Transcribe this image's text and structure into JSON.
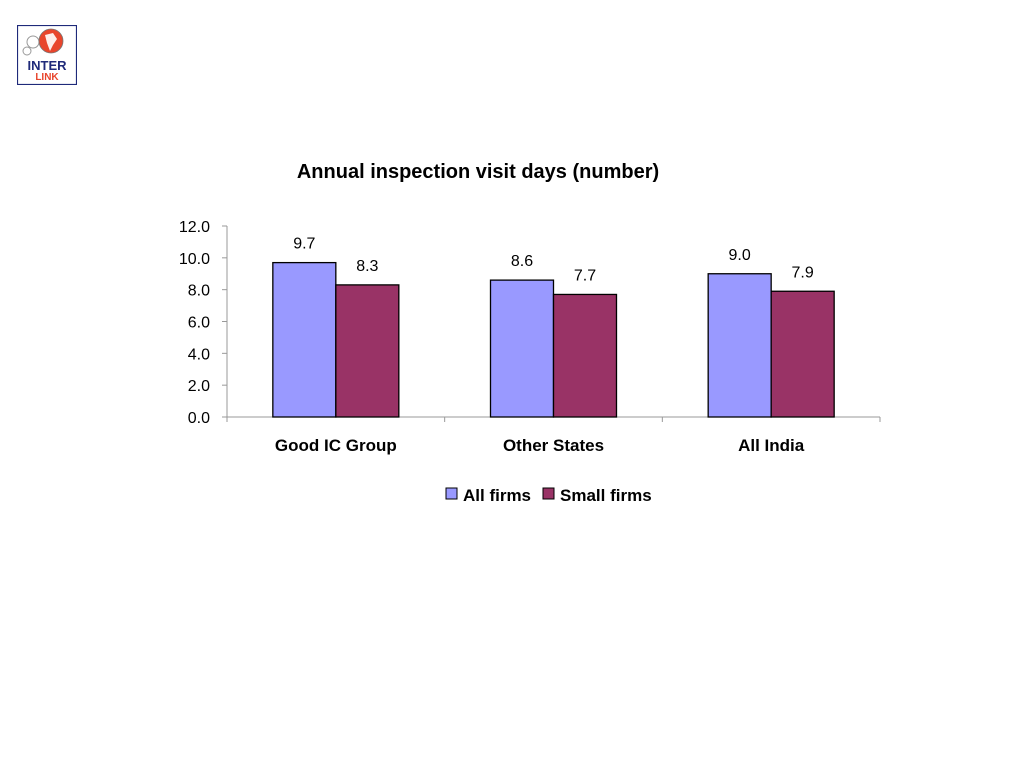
{
  "logo": {
    "text_top": "INTER",
    "text_bottom": "LINK"
  },
  "chart_data": {
    "type": "bar",
    "title": "Annual inspection visit days (number)",
    "categories": [
      "Good IC Group",
      "Other States",
      "All India"
    ],
    "series": [
      {
        "name": "All firms",
        "values": [
          9.7,
          8.6,
          9.0
        ],
        "labels": [
          "9.7",
          "8.6",
          "9.0"
        ],
        "color": "#9999ff"
      },
      {
        "name": "Small firms",
        "values": [
          8.3,
          7.7,
          7.9
        ],
        "labels": [
          "8.3",
          "7.7",
          "7.9"
        ],
        "color": "#993366"
      }
    ],
    "ylim": [
      0,
      12
    ],
    "yticks": [
      "0.0",
      "2.0",
      "4.0",
      "6.0",
      "8.0",
      "10.0",
      "12.0"
    ],
    "grid": false,
    "legend_position": "bottom"
  }
}
